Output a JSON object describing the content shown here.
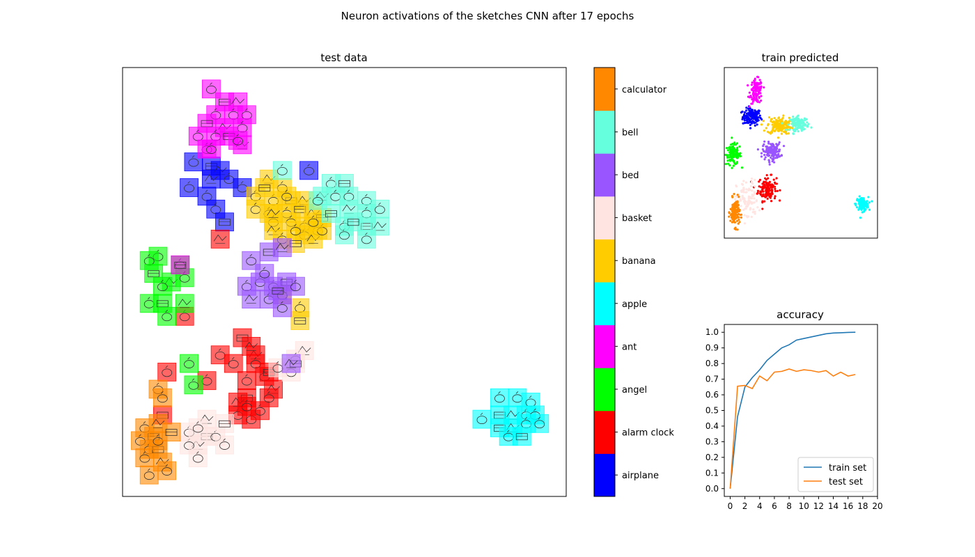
{
  "suptitle": "Neuron activations of the sketches CNN after 17 epochs",
  "classes": [
    {
      "name": "airplane",
      "color": "#0000ff"
    },
    {
      "name": "alarm clock",
      "color": "#ff0000"
    },
    {
      "name": "angel",
      "color": "#00ff00"
    },
    {
      "name": "ant",
      "color": "#ff00ff"
    },
    {
      "name": "apple",
      "color": "#00ffff"
    },
    {
      "name": "banana",
      "color": "#ffcc00"
    },
    {
      "name": "basket",
      "color": "#ffe4e1"
    },
    {
      "name": "bed",
      "color": "#9955ff"
    },
    {
      "name": "bell",
      "color": "#66ffdd"
    },
    {
      "name": "calculator",
      "color": "#ff8800"
    }
  ],
  "chart_data": [
    {
      "type": "scatter",
      "title": "test data",
      "xlabel": "",
      "ylabel": "",
      "axes_visible": false,
      "xlim": [
        0,
        1
      ],
      "ylim": [
        0,
        1
      ],
      "marker": "thumbnail-sketch",
      "series": [
        {
          "name": "airplane",
          "points": [
            [
              0.16,
              0.78
            ],
            [
              0.2,
              0.77
            ],
            [
              0.22,
              0.76
            ],
            [
              0.15,
              0.72
            ],
            [
              0.19,
              0.7
            ],
            [
              0.21,
              0.67
            ],
            [
              0.23,
              0.64
            ],
            [
              0.2,
              0.74
            ],
            [
              0.24,
              0.74
            ],
            [
              0.27,
              0.72
            ],
            [
              0.42,
              0.76
            ]
          ]
        },
        {
          "name": "alarm clock",
          "points": [
            [
              0.22,
              0.6
            ],
            [
              0.14,
              0.42
            ],
            [
              0.22,
              0.33
            ],
            [
              0.19,
              0.27
            ],
            [
              0.27,
              0.37
            ],
            [
              0.3,
              0.33
            ],
            [
              0.3,
              0.31
            ],
            [
              0.28,
              0.27
            ],
            [
              0.32,
              0.28
            ],
            [
              0.28,
              0.23
            ],
            [
              0.34,
              0.25
            ],
            [
              0.26,
              0.19
            ],
            [
              0.29,
              0.18
            ],
            [
              0.31,
              0.2
            ],
            [
              0.33,
              0.29
            ],
            [
              0.29,
              0.35
            ],
            [
              0.25,
              0.31
            ],
            [
              0.33,
              0.23
            ],
            [
              0.1,
              0.29
            ],
            [
              0.09,
              0.19
            ],
            [
              0.26,
              0.22
            ],
            [
              0.28,
              0.21
            ]
          ]
        },
        {
          "name": "angel",
          "points": [
            [
              0.08,
              0.56
            ],
            [
              0.06,
              0.55
            ],
            [
              0.13,
              0.54
            ],
            [
              0.07,
              0.52
            ],
            [
              0.11,
              0.5
            ],
            [
              0.09,
              0.49
            ],
            [
              0.14,
              0.51
            ],
            [
              0.06,
              0.45
            ],
            [
              0.09,
              0.45
            ],
            [
              0.14,
              0.45
            ],
            [
              0.1,
              0.42
            ],
            [
              0.15,
              0.31
            ],
            [
              0.16,
              0.26
            ]
          ]
        },
        {
          "name": "ant",
          "points": [
            [
              0.2,
              0.95
            ],
            [
              0.23,
              0.92
            ],
            [
              0.26,
              0.92
            ],
            [
              0.21,
              0.89
            ],
            [
              0.25,
              0.89
            ],
            [
              0.28,
              0.89
            ],
            [
              0.19,
              0.87
            ],
            [
              0.23,
              0.86
            ],
            [
              0.27,
              0.86
            ],
            [
              0.17,
              0.84
            ],
            [
              0.21,
              0.84
            ],
            [
              0.24,
              0.84
            ],
            [
              0.27,
              0.82
            ],
            [
              0.19,
              0.81
            ],
            [
              0.2,
              0.81
            ],
            [
              0.26,
              0.83
            ],
            [
              0.13,
              0.54
            ]
          ]
        },
        {
          "name": "apple",
          "points": [
            [
              0.85,
              0.23
            ],
            [
              0.89,
              0.23
            ],
            [
              0.92,
              0.22
            ],
            [
              0.85,
              0.19
            ],
            [
              0.88,
              0.19
            ],
            [
              0.91,
              0.19
            ],
            [
              0.93,
              0.19
            ],
            [
              0.81,
              0.18
            ],
            [
              0.85,
              0.16
            ],
            [
              0.88,
              0.16
            ],
            [
              0.91,
              0.17
            ],
            [
              0.94,
              0.17
            ],
            [
              0.87,
              0.14
            ],
            [
              0.9,
              0.14
            ]
          ]
        },
        {
          "name": "banana",
          "points": [
            [
              0.33,
              0.74
            ],
            [
              0.36,
              0.72
            ],
            [
              0.3,
              0.7
            ],
            [
              0.34,
              0.69
            ],
            [
              0.38,
              0.69
            ],
            [
              0.41,
              0.69
            ],
            [
              0.3,
              0.67
            ],
            [
              0.33,
              0.66
            ],
            [
              0.37,
              0.66
            ],
            [
              0.4,
              0.67
            ],
            [
              0.43,
              0.66
            ],
            [
              0.34,
              0.64
            ],
            [
              0.38,
              0.64
            ],
            [
              0.41,
              0.63
            ],
            [
              0.45,
              0.65
            ],
            [
              0.34,
              0.62
            ],
            [
              0.41,
              0.61
            ],
            [
              0.44,
              0.62
            ],
            [
              0.36,
              0.6
            ],
            [
              0.39,
              0.59
            ],
            [
              0.43,
              0.6
            ],
            [
              0.45,
              0.62
            ],
            [
              0.36,
              0.47
            ],
            [
              0.4,
              0.44
            ],
            [
              0.32,
              0.72
            ],
            [
              0.34,
              0.66
            ],
            [
              0.37,
              0.7
            ],
            [
              0.39,
              0.62
            ],
            [
              0.43,
              0.64
            ],
            [
              0.4,
              0.41
            ]
          ]
        },
        {
          "name": "basket",
          "points": [
            [
              0.41,
              0.34
            ],
            [
              0.39,
              0.32
            ],
            [
              0.38,
              0.29
            ],
            [
              0.35,
              0.3
            ],
            [
              0.19,
              0.14
            ],
            [
              0.17,
              0.12
            ],
            [
              0.15,
              0.12
            ],
            [
              0.17,
              0.09
            ],
            [
              0.21,
              0.14
            ],
            [
              0.23,
              0.17
            ],
            [
              0.19,
              0.18
            ],
            [
              0.15,
              0.15
            ],
            [
              0.23,
              0.12
            ],
            [
              0.17,
              0.16
            ],
            [
              0.39,
              0.31
            ]
          ]
        },
        {
          "name": "bed",
          "points": [
            [
              0.29,
              0.55
            ],
            [
              0.33,
              0.57
            ],
            [
              0.36,
              0.58
            ],
            [
              0.28,
              0.49
            ],
            [
              0.31,
              0.5
            ],
            [
              0.34,
              0.49
            ],
            [
              0.37,
              0.5
            ],
            [
              0.29,
              0.46
            ],
            [
              0.33,
              0.46
            ],
            [
              0.36,
              0.47
            ],
            [
              0.39,
              0.49
            ],
            [
              0.35,
              0.48
            ],
            [
              0.38,
              0.31
            ],
            [
              0.32,
              0.52
            ],
            [
              0.36,
              0.44
            ]
          ]
        },
        {
          "name": "bell",
          "points": [
            [
              0.36,
              0.76
            ],
            [
              0.47,
              0.73
            ],
            [
              0.5,
              0.73
            ],
            [
              0.45,
              0.7
            ],
            [
              0.48,
              0.7
            ],
            [
              0.51,
              0.7
            ],
            [
              0.55,
              0.69
            ],
            [
              0.47,
              0.66
            ],
            [
              0.51,
              0.67
            ],
            [
              0.55,
              0.66
            ],
            [
              0.58,
              0.67
            ],
            [
              0.5,
              0.63
            ],
            [
              0.55,
              0.63
            ],
            [
              0.58,
              0.63
            ],
            [
              0.5,
              0.61
            ],
            [
              0.55,
              0.6
            ],
            [
              0.44,
              0.69
            ],
            [
              0.52,
              0.64
            ]
          ]
        },
        {
          "name": "calculator",
          "points": [
            [
              0.08,
              0.25
            ],
            [
              0.09,
              0.23
            ],
            [
              0.05,
              0.16
            ],
            [
              0.07,
              0.14
            ],
            [
              0.08,
              0.17
            ],
            [
              0.04,
              0.13
            ],
            [
              0.06,
              0.11
            ],
            [
              0.05,
              0.09
            ],
            [
              0.08,
              0.11
            ],
            [
              0.09,
              0.08
            ],
            [
              0.06,
              0.05
            ],
            [
              0.1,
              0.06
            ],
            [
              0.08,
              0.13
            ],
            [
              0.11,
              0.15
            ]
          ]
        }
      ]
    },
    {
      "type": "colorbar",
      "ticklabels": [
        "airplane",
        "alarm clock",
        "angel",
        "ant",
        "apple",
        "banana",
        "basket",
        "bed",
        "bell",
        "calculator"
      ]
    },
    {
      "type": "scatter",
      "title": "train predicted",
      "xlabel": "",
      "ylabel": "",
      "axes_visible": false,
      "xlim": [
        0,
        1
      ],
      "ylim": [
        0,
        1
      ],
      "clusters": [
        {
          "name": "airplane",
          "center": [
            0.18,
            0.71
          ],
          "spread": [
            0.06,
            0.05
          ],
          "n": 130
        },
        {
          "name": "alarm clock",
          "center": [
            0.28,
            0.29
          ],
          "spread": [
            0.06,
            0.07
          ],
          "n": 140
        },
        {
          "name": "angel",
          "center": [
            0.06,
            0.49
          ],
          "spread": [
            0.05,
            0.06
          ],
          "n": 120
        },
        {
          "name": "ant",
          "center": [
            0.21,
            0.86
          ],
          "spread": [
            0.04,
            0.07
          ],
          "n": 120
        },
        {
          "name": "apple",
          "center": [
            0.9,
            0.2
          ],
          "spread": [
            0.04,
            0.04
          ],
          "n": 130
        },
        {
          "name": "banana",
          "center": [
            0.36,
            0.66
          ],
          "spread": [
            0.08,
            0.05
          ],
          "n": 160
        },
        {
          "name": "basket",
          "center": [
            0.15,
            0.22
          ],
          "spread": [
            0.07,
            0.12
          ],
          "n": 100
        },
        {
          "name": "bed",
          "center": [
            0.31,
            0.51
          ],
          "spread": [
            0.06,
            0.05
          ],
          "n": 140
        },
        {
          "name": "bell",
          "center": [
            0.49,
            0.67
          ],
          "spread": [
            0.06,
            0.04
          ],
          "n": 120
        },
        {
          "name": "calculator",
          "center": [
            0.07,
            0.15
          ],
          "spread": [
            0.03,
            0.08
          ],
          "n": 130
        }
      ]
    },
    {
      "type": "line",
      "title": "accuracy",
      "xlabel": "",
      "ylabel": "",
      "xlim": [
        -0.8,
        20
      ],
      "ylim": [
        -0.05,
        1.05
      ],
      "xticks": [
        0,
        2,
        4,
        6,
        8,
        10,
        12,
        14,
        16,
        18,
        20
      ],
      "yticks": [
        0.0,
        0.1,
        0.2,
        0.3,
        0.4,
        0.5,
        0.6,
        0.7,
        0.8,
        0.9,
        1.0
      ],
      "x": [
        0,
        1,
        2,
        3,
        4,
        5,
        6,
        7,
        8,
        9,
        10,
        11,
        12,
        13,
        14,
        15,
        16,
        17
      ],
      "series": [
        {
          "name": "train set",
          "color": "#1f77b4",
          "values": [
            0.0,
            0.46,
            0.65,
            0.71,
            0.76,
            0.82,
            0.86,
            0.9,
            0.92,
            0.95,
            0.96,
            0.97,
            0.98,
            0.99,
            0.995,
            0.997,
            0.999,
            1.0
          ]
        },
        {
          "name": "test set",
          "color": "#ff7f0e",
          "values": [
            0.0,
            0.655,
            0.66,
            0.64,
            0.72,
            0.69,
            0.745,
            0.75,
            0.765,
            0.75,
            0.76,
            0.755,
            0.745,
            0.755,
            0.72,
            0.745,
            0.72,
            0.73
          ]
        }
      ],
      "legend": "lower-right"
    }
  ]
}
